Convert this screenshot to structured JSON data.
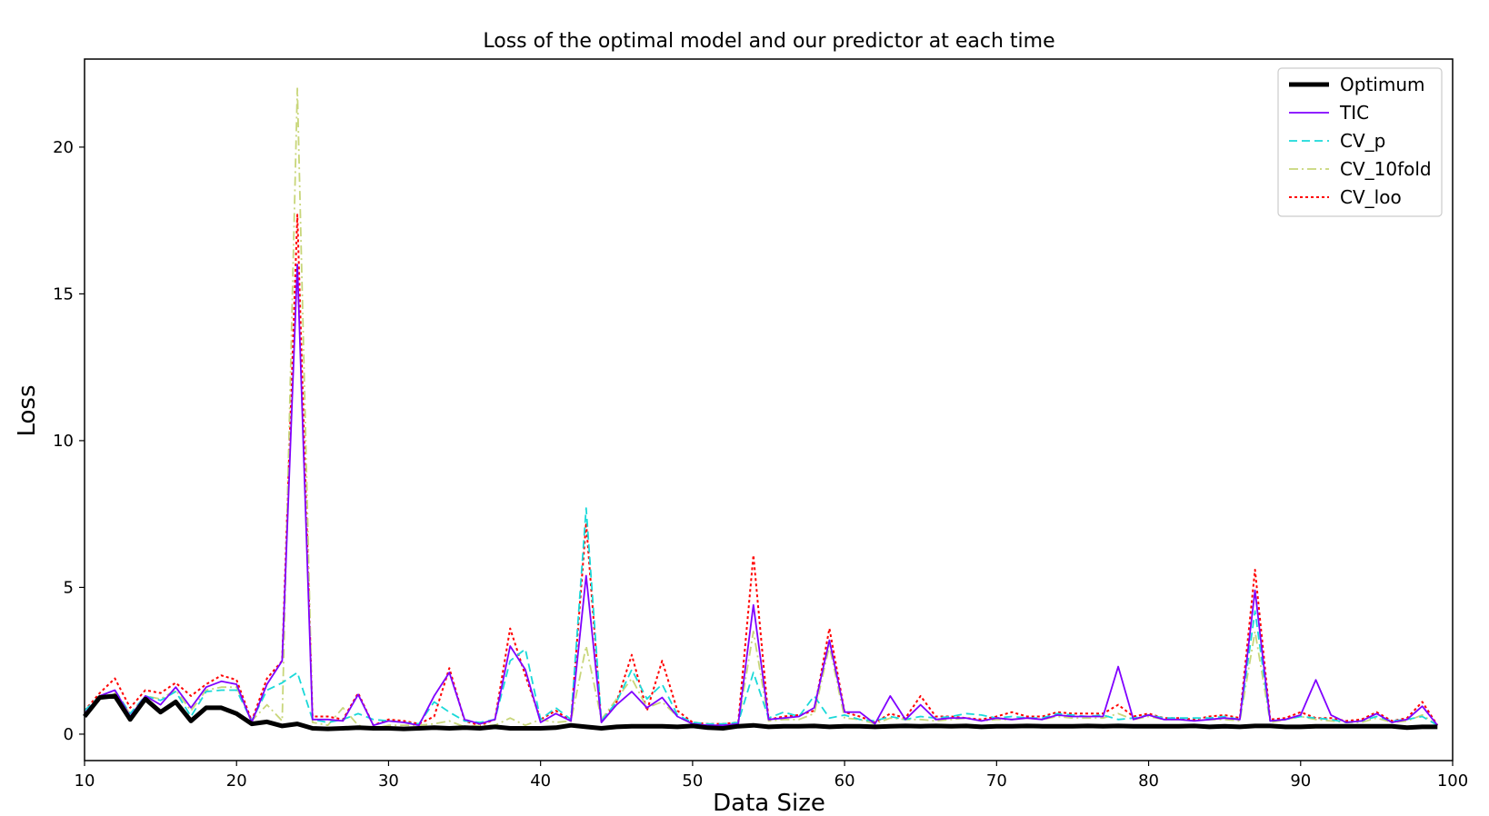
{
  "chart_data": {
    "type": "line",
    "title": "Loss of the optimal model and our predictor at each time",
    "xlabel": "Data Size",
    "ylabel": "Loss",
    "xlim": [
      10,
      100
    ],
    "ylim": [
      -0.9,
      23.0
    ],
    "xticks": [
      10,
      20,
      30,
      40,
      50,
      60,
      70,
      80,
      90,
      100
    ],
    "yticks": [
      0,
      5,
      10,
      15,
      20
    ],
    "grid": false,
    "legend_position": "top-right",
    "x": [
      10,
      11,
      12,
      13,
      14,
      15,
      16,
      17,
      18,
      19,
      20,
      21,
      22,
      23,
      24,
      25,
      26,
      27,
      28,
      29,
      30,
      31,
      32,
      33,
      34,
      35,
      36,
      37,
      38,
      39,
      40,
      41,
      42,
      43,
      44,
      45,
      46,
      47,
      48,
      49,
      50,
      51,
      52,
      53,
      54,
      55,
      56,
      57,
      58,
      59,
      60,
      61,
      62,
      63,
      64,
      65,
      66,
      67,
      68,
      69,
      70,
      71,
      72,
      73,
      74,
      75,
      76,
      77,
      78,
      79,
      80,
      81,
      82,
      83,
      84,
      85,
      86,
      87,
      88,
      89,
      90,
      91,
      92,
      93,
      94,
      95,
      96,
      97,
      98,
      99
    ],
    "series": [
      {
        "name": "Optimum",
        "color": "#000000",
        "style": "solid",
        "width": 5,
        "values": [
          0.6,
          1.25,
          1.3,
          0.5,
          1.2,
          0.75,
          1.1,
          0.45,
          0.9,
          0.9,
          0.7,
          0.35,
          0.42,
          0.28,
          0.35,
          0.2,
          0.18,
          0.2,
          0.22,
          0.2,
          0.2,
          0.18,
          0.2,
          0.22,
          0.2,
          0.22,
          0.2,
          0.25,
          0.2,
          0.2,
          0.2,
          0.22,
          0.3,
          0.25,
          0.2,
          0.25,
          0.27,
          0.27,
          0.27,
          0.25,
          0.28,
          0.22,
          0.2,
          0.27,
          0.3,
          0.25,
          0.27,
          0.27,
          0.28,
          0.25,
          0.27,
          0.27,
          0.25,
          0.27,
          0.28,
          0.27,
          0.28,
          0.27,
          0.28,
          0.25,
          0.27,
          0.27,
          0.28,
          0.27,
          0.27,
          0.27,
          0.28,
          0.27,
          0.28,
          0.27,
          0.27,
          0.27,
          0.27,
          0.28,
          0.25,
          0.27,
          0.25,
          0.28,
          0.28,
          0.25,
          0.25,
          0.27,
          0.27,
          0.27,
          0.27,
          0.27,
          0.27,
          0.22,
          0.25,
          0.25
        ]
      },
      {
        "name": "TIC",
        "color": "#8000ff",
        "style": "solid",
        "width": 1.8,
        "values": [
          0.7,
          1.3,
          1.5,
          0.6,
          1.3,
          1.0,
          1.6,
          0.9,
          1.6,
          1.8,
          1.7,
          0.4,
          1.7,
          2.5,
          16.0,
          0.5,
          0.5,
          0.45,
          1.35,
          0.3,
          0.45,
          0.4,
          0.3,
          1.3,
          2.1,
          0.5,
          0.35,
          0.5,
          3.0,
          2.2,
          0.4,
          0.7,
          0.45,
          5.4,
          0.4,
          1.0,
          1.45,
          0.9,
          1.25,
          0.6,
          0.35,
          0.3,
          0.3,
          0.35,
          4.4,
          0.5,
          0.55,
          0.6,
          0.9,
          3.2,
          0.75,
          0.75,
          0.35,
          1.3,
          0.5,
          1.0,
          0.5,
          0.55,
          0.55,
          0.45,
          0.55,
          0.5,
          0.55,
          0.5,
          0.65,
          0.6,
          0.6,
          0.6,
          2.3,
          0.5,
          0.65,
          0.5,
          0.5,
          0.45,
          0.5,
          0.55,
          0.5,
          4.9,
          0.45,
          0.5,
          0.65,
          1.85,
          0.65,
          0.4,
          0.45,
          0.7,
          0.4,
          0.5,
          0.95,
          0.3
        ]
      },
      {
        "name": "CV_p",
        "color": "#1ad9d9",
        "style": "dashed",
        "width": 1.8,
        "values": [
          0.8,
          1.3,
          1.5,
          0.7,
          1.3,
          1.15,
          1.45,
          0.6,
          1.45,
          1.5,
          1.5,
          0.45,
          1.5,
          1.75,
          2.1,
          0.5,
          0.4,
          0.5,
          0.7,
          0.5,
          0.45,
          0.4,
          0.35,
          1.1,
          0.75,
          0.45,
          0.4,
          0.5,
          2.5,
          2.9,
          0.5,
          0.9,
          0.5,
          7.7,
          0.45,
          1.1,
          2.2,
          1.2,
          1.7,
          0.65,
          0.4,
          0.35,
          0.35,
          0.4,
          2.1,
          0.55,
          0.75,
          0.6,
          1.3,
          0.55,
          0.65,
          0.5,
          0.45,
          0.6,
          0.5,
          0.6,
          0.55,
          0.6,
          0.7,
          0.65,
          0.55,
          0.6,
          0.55,
          0.55,
          0.7,
          0.65,
          0.6,
          0.65,
          0.5,
          0.55,
          0.65,
          0.55,
          0.55,
          0.55,
          0.55,
          0.6,
          0.5,
          4.2,
          0.45,
          0.5,
          0.6,
          0.55,
          0.5,
          0.4,
          0.45,
          0.6,
          0.45,
          0.5,
          0.6,
          0.3
        ]
      },
      {
        "name": "CV_10fold",
        "color": "#c8d67a",
        "style": "dashdot",
        "width": 1.8,
        "values": [
          0.7,
          1.2,
          1.4,
          0.7,
          1.3,
          1.2,
          1.5,
          0.8,
          1.5,
          1.6,
          1.6,
          0.45,
          1.0,
          0.45,
          22.0,
          0.4,
          0.3,
          0.9,
          0.3,
          0.2,
          0.3,
          0.3,
          0.3,
          0.35,
          0.45,
          0.25,
          0.3,
          0.3,
          0.55,
          0.3,
          0.5,
          0.4,
          0.45,
          3.0,
          0.5,
          1.2,
          1.9,
          0.9,
          1.1,
          0.6,
          0.35,
          0.3,
          0.3,
          0.35,
          3.5,
          0.45,
          0.5,
          0.5,
          0.7,
          3.0,
          0.55,
          0.5,
          0.35,
          0.55,
          0.5,
          0.5,
          0.45,
          0.5,
          0.55,
          0.45,
          0.5,
          0.5,
          0.55,
          0.5,
          0.6,
          0.55,
          0.55,
          0.55,
          0.7,
          0.5,
          0.6,
          0.5,
          0.5,
          0.45,
          0.5,
          0.5,
          0.45,
          3.5,
          0.4,
          0.5,
          0.6,
          0.5,
          0.45,
          0.4,
          0.4,
          0.55,
          0.4,
          0.45,
          0.65,
          0.3
        ]
      },
      {
        "name": "CV_loo",
        "color": "#ff0000",
        "style": "dotted",
        "width": 2,
        "values": [
          0.8,
          1.4,
          1.9,
          0.9,
          1.5,
          1.4,
          1.75,
          1.3,
          1.7,
          2.0,
          1.85,
          0.45,
          1.9,
          2.5,
          17.7,
          0.6,
          0.6,
          0.5,
          1.4,
          0.3,
          0.5,
          0.45,
          0.35,
          0.6,
          2.25,
          0.45,
          0.3,
          0.5,
          3.6,
          2.0,
          0.5,
          0.8,
          0.45,
          7.2,
          0.4,
          1.1,
          2.7,
          0.8,
          2.5,
          0.8,
          0.4,
          0.35,
          0.35,
          0.4,
          6.1,
          0.5,
          0.6,
          0.65,
          0.8,
          3.6,
          0.75,
          0.6,
          0.4,
          0.7,
          0.55,
          1.3,
          0.6,
          0.6,
          0.55,
          0.5,
          0.6,
          0.75,
          0.6,
          0.6,
          0.75,
          0.7,
          0.7,
          0.7,
          1.0,
          0.6,
          0.7,
          0.55,
          0.55,
          0.5,
          0.6,
          0.65,
          0.55,
          5.6,
          0.5,
          0.55,
          0.75,
          0.55,
          0.55,
          0.45,
          0.5,
          0.75,
          0.45,
          0.55,
          1.1,
          0.3
        ]
      }
    ]
  }
}
